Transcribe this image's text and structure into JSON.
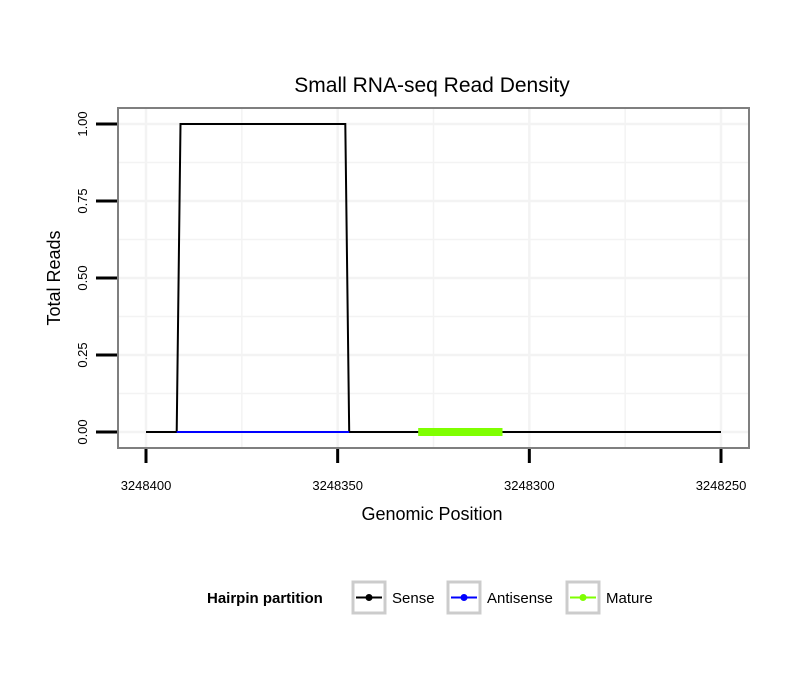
{
  "chart_data": {
    "type": "line",
    "title": "Small RNA-seq Read Density",
    "xlabel": "Genomic Position",
    "ylabel": "Total Reads",
    "xlim": [
      3248400,
      3248250
    ],
    "x_reversed": true,
    "ylim": [
      0,
      1
    ],
    "x_ticks": [
      3248400,
      3248350,
      3248300,
      3248250
    ],
    "x_tick_labels": [
      "3248400",
      "3248350",
      "3248300",
      "3248250"
    ],
    "y_ticks": [
      0,
      0.25,
      0.5,
      0.75,
      1
    ],
    "y_tick_labels": [
      "0.00",
      "0.25",
      "0.50",
      "0.75",
      "1.00"
    ],
    "grid": true,
    "legend": {
      "title": "Hairpin partition",
      "placement": "bottom",
      "entries": [
        "Sense",
        "Antisense",
        "Mature"
      ]
    },
    "series": [
      {
        "name": "Sense",
        "color": "#000000",
        "x": [
          3248400,
          3248392,
          3248391,
          3248348,
          3248347,
          3248250
        ],
        "y": [
          0,
          0,
          1,
          1,
          0,
          0
        ]
      },
      {
        "name": "Antisense",
        "color": "#0000ff",
        "x": [
          3248392,
          3248347
        ],
        "y": [
          0,
          0
        ]
      },
      {
        "name": "Mature",
        "color": "#7fff00",
        "x": [
          3248329,
          3248307
        ],
        "y": [
          0,
          0
        ]
      }
    ]
  }
}
